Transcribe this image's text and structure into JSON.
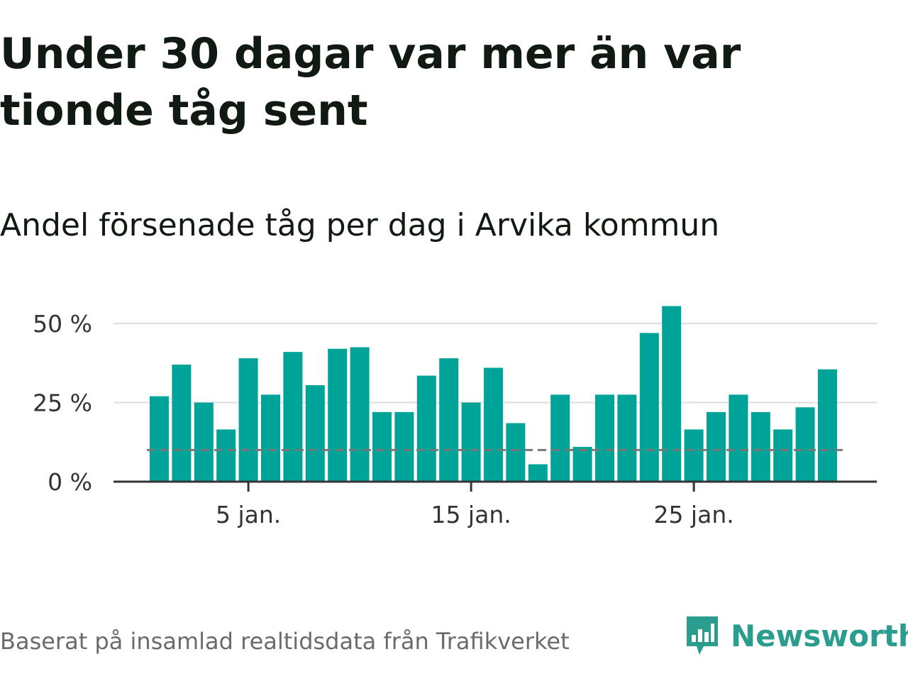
{
  "title": "Under 30 dagar var mer än var tionde tåg sent",
  "subtitle": "Andel försenade tåg per dag i Arvika kommun",
  "footer": {
    "note": "Baserat på insamlad realtidsdata från Trafikverket",
    "logo_text": "Newsworthy"
  },
  "colors": {
    "bar": "#00a398",
    "grid": "#dddddd",
    "baseline": "#333333",
    "reference": "#777777"
  },
  "chart_data": {
    "type": "bar",
    "xlabel": "",
    "ylabel": "",
    "x": [
      1,
      2,
      3,
      4,
      5,
      6,
      7,
      8,
      9,
      10,
      11,
      12,
      13,
      14,
      15,
      16,
      17,
      18,
      19,
      20,
      21,
      22,
      23,
      24,
      25,
      26,
      27,
      28,
      29,
      30,
      31
    ],
    "values": [
      27,
      37,
      25,
      16.5,
      39,
      27.5,
      41,
      30.5,
      42,
      42.5,
      22,
      22,
      33.5,
      39,
      25,
      36,
      18.5,
      5.5,
      27.5,
      11,
      27.5,
      27.5,
      47,
      55.5,
      16.5,
      22,
      27.5,
      22,
      16.5,
      23.5,
      35.5
    ],
    "ylim": [
      0,
      56
    ],
    "yticks": [
      0,
      25,
      50
    ],
    "ytick_labels": [
      "0 %",
      "25 %",
      "50 %"
    ],
    "xticks": [
      5,
      15,
      25
    ],
    "xtick_labels": [
      "5 jan.",
      "15 jan.",
      "25 jan."
    ],
    "reference_line": 10,
    "grid": true,
    "legend": "none"
  }
}
